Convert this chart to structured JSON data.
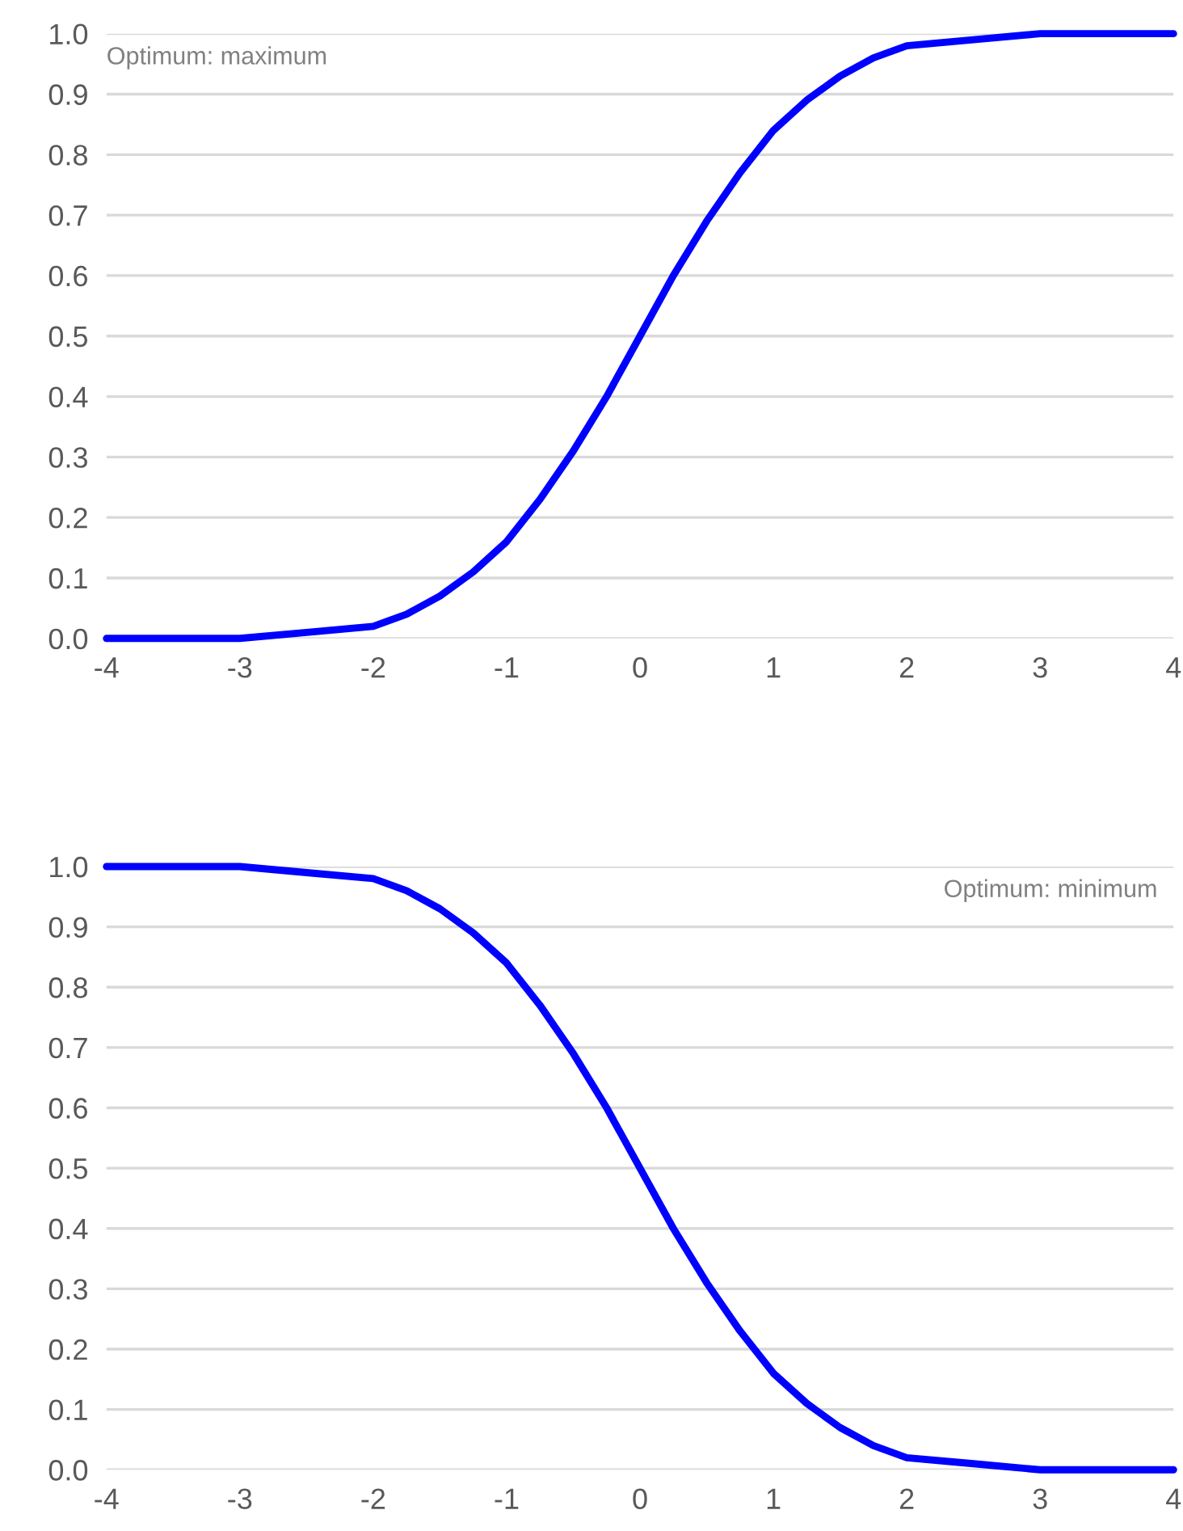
{
  "chart_data": [
    {
      "type": "line",
      "x": [
        -4,
        -3.5,
        -3,
        -2.5,
        -2,
        -1.75,
        -1.5,
        -1.25,
        -1,
        -0.75,
        -0.5,
        -0.25,
        0,
        0.25,
        0.5,
        0.75,
        1,
        1.25,
        1.5,
        1.75,
        2,
        2.5,
        3,
        3.5,
        4
      ],
      "series": [
        {
          "color": "#0000ff",
          "values": [
            0,
            0,
            0,
            0.01,
            0.02,
            0.04,
            0.07,
            0.11,
            0.16,
            0.23,
            0.31,
            0.4,
            0.5,
            0.6,
            0.69,
            0.77,
            0.84,
            0.89,
            0.93,
            0.96,
            0.98,
            0.99,
            1.0,
            1.0,
            1.0
          ]
        }
      ],
      "xlim": [
        -4,
        4
      ],
      "xticks": [
        -4,
        -3,
        -2,
        -1,
        0,
        1,
        2,
        3,
        4
      ],
      "ylim": [
        0,
        1
      ],
      "yticks": [
        {
          "value": 0,
          "label": "0.0"
        },
        {
          "value": 0.1,
          "label": "0.1"
        },
        {
          "value": 0.2,
          "label": "0.2"
        },
        {
          "value": 0.3,
          "label": "0.3"
        },
        {
          "value": 0.4,
          "label": "0.4"
        },
        {
          "value": 0.5,
          "label": "0.5"
        },
        {
          "value": 0.6,
          "label": "0.6"
        },
        {
          "value": 0.7,
          "label": "0.7"
        },
        {
          "value": 0.8,
          "label": "0.8"
        },
        {
          "value": 0.9,
          "label": "0.9"
        },
        {
          "value": 1,
          "label": "1.0"
        }
      ],
      "grid": "y",
      "annotations": [
        "Optimum: maximum"
      ]
    },
    {
      "type": "line",
      "x": [
        -4,
        -3.5,
        -3,
        -2.5,
        -2,
        -1.75,
        -1.5,
        -1.25,
        -1,
        -0.75,
        -0.5,
        -0.25,
        0,
        0.25,
        0.5,
        0.75,
        1,
        1.25,
        1.5,
        1.75,
        2,
        2.5,
        3,
        3.5,
        4
      ],
      "series": [
        {
          "color": "#0000ff",
          "values": [
            1.0,
            1.0,
            1.0,
            0.99,
            0.98,
            0.96,
            0.93,
            0.89,
            0.84,
            0.77,
            0.69,
            0.6,
            0.5,
            0.4,
            0.31,
            0.23,
            0.16,
            0.11,
            0.07,
            0.04,
            0.02,
            0.01,
            0,
            0,
            0
          ]
        }
      ],
      "xlim": [
        -4,
        4
      ],
      "xticks": [
        -4,
        -3,
        -2,
        -1,
        0,
        1,
        2,
        3,
        4
      ],
      "ylim": [
        0,
        1
      ],
      "yticks": [
        {
          "value": 0,
          "label": "0.0"
        },
        {
          "value": 0.1,
          "label": "0.1"
        },
        {
          "value": 0.2,
          "label": "0.2"
        },
        {
          "value": 0.3,
          "label": "0.3"
        },
        {
          "value": 0.4,
          "label": "0.4"
        },
        {
          "value": 0.5,
          "label": "0.5"
        },
        {
          "value": 0.6,
          "label": "0.6"
        },
        {
          "value": 0.7,
          "label": "0.7"
        },
        {
          "value": 0.8,
          "label": "0.8"
        },
        {
          "value": 0.9,
          "label": "0.9"
        },
        {
          "value": 1,
          "label": "1.0"
        }
      ],
      "grid": "y",
      "annotations": [
        "Optimum: minimum"
      ]
    }
  ]
}
